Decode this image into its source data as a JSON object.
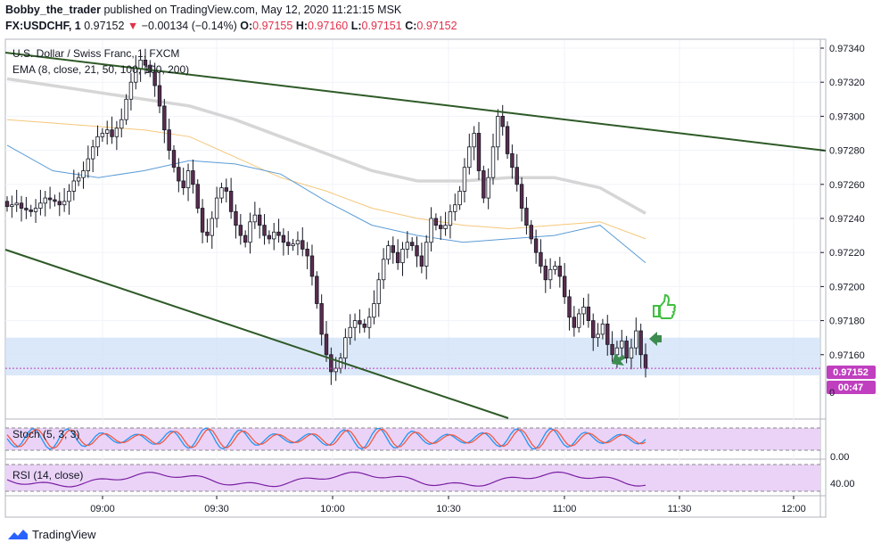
{
  "header": {
    "author": "Bobby_the_trader",
    "published_text": "published on TradingView.com, May 12, 2020 11:21:15 MSK",
    "symbol": "FX:USDCHF, 1",
    "last": "0.97152",
    "change_arrow": "▼",
    "change": "−0.00134 (−0.14%)",
    "o_label": "O:",
    "o_value": "0.97155",
    "h_label": "H:",
    "h_value": "0.97160",
    "l_label": "L:",
    "l_value": "0.97151",
    "c_label": "C:",
    "c_value": "0.97152"
  },
  "legend": {
    "instrument": "U.S. Dollar / Swiss Franc, 1, FXCM",
    "ema": "EMA (8, close, 21, 50, 100, 100, 200)",
    "stoch": "Stoch (5, 3, 3)",
    "rsi": "RSI (14, close)"
  },
  "price_scale": {
    "ticks": [
      "0.97340",
      "0.97320",
      "0.97300",
      "0.97280",
      "0.97260",
      "0.97240",
      "0.97220",
      "0.97200",
      "0.97180",
      "0.97160"
    ],
    "last_price_label": "0.97152",
    "countdown": "00:47",
    "stoch_tick": "0.00",
    "rsi_tick": "40.00"
  },
  "time_scale": {
    "ticks": [
      "09:00",
      "09:30",
      "10:00",
      "10:30",
      "11:00",
      "11:30",
      "12:00"
    ]
  },
  "footer": {
    "brand": "TradingView"
  },
  "colors": {
    "bull": "#ffffff",
    "bear": "#5b2c4f",
    "outline": "#131722",
    "trendline": "#2e5a27",
    "ema_orange": "#f5c77a",
    "ema_blue": "#5b9bd5",
    "ema_grey": "#d6d6d6",
    "zone": "#cfe0f7",
    "last_price": "#c03fbf",
    "stoch_k": "#2196f3",
    "stoch_d": "#f05a44",
    "stoch_bg": "#ead3f7",
    "rsi_line": "#7b1fa2",
    "rsi_bg": "#ead3f7",
    "arrow": "#3c8c50",
    "thumb": "#3fbf3f"
  },
  "chart_data": {
    "type": "candlestick",
    "x_ticks": [
      "09:00",
      "09:30",
      "10:00",
      "10:30",
      "11:00",
      "11:30",
      "12:00"
    ],
    "y_ticks": [
      0.9734,
      0.9732,
      0.973,
      0.9728,
      0.9726,
      0.9724,
      0.9722,
      0.972,
      0.9718,
      0.9716
    ],
    "ylim": [
      0.97132,
      0.97352
    ],
    "last_price": 0.97152,
    "close_path": [
      0.97247,
      0.97248,
      0.97249,
      0.97246,
      0.97245,
      0.97244,
      0.97246,
      0.97249,
      0.97252,
      0.97251,
      0.9725,
      0.97248,
      0.9725,
      0.97256,
      0.97262,
      0.97264,
      0.97268,
      0.97275,
      0.97282,
      0.97288,
      0.9729,
      0.97292,
      0.97288,
      0.97293,
      0.97298,
      0.9731,
      0.9732,
      0.97328,
      0.97333,
      0.9733,
      0.97326,
      0.97318,
      0.97306,
      0.97292,
      0.9728,
      0.9727,
      0.97262,
      0.97258,
      0.97268,
      0.9726,
      0.97246,
      0.97232,
      0.9723,
      0.9724,
      0.97252,
      0.97258,
      0.97256,
      0.97244,
      0.97236,
      0.9723,
      0.97226,
      0.97238,
      0.97242,
      0.97236,
      0.9723,
      0.97228,
      0.97232,
      0.9723,
      0.97226,
      0.97224,
      0.97225,
      0.97227,
      0.97222,
      0.97218,
      0.97206,
      0.9719,
      0.97172,
      0.9716,
      0.9715,
      0.97152,
      0.97158,
      0.9717,
      0.97176,
      0.9718,
      0.97178,
      0.97176,
      0.97182,
      0.9719,
      0.97204,
      0.97216,
      0.97224,
      0.9722,
      0.97214,
      0.97222,
      0.97226,
      0.97224,
      0.97218,
      0.97212,
      0.97226,
      0.9724,
      0.97236,
      0.97234,
      0.97236,
      0.97244,
      0.97248,
      0.97256,
      0.9727,
      0.97282,
      0.9729,
      0.97268,
      0.97252,
      0.97264,
      0.97282,
      0.973,
      0.97294,
      0.97278,
      0.9727,
      0.9726,
      0.97246,
      0.97236,
      0.97228,
      0.9722,
      0.97212,
      0.97204,
      0.9721,
      0.97212,
      0.97206,
      0.97194,
      0.97182,
      0.97176,
      0.97184,
      0.97188,
      0.9718,
      0.9717,
      0.97172,
      0.97178,
      0.97166,
      0.9716,
      0.97164,
      0.97168,
      0.97158,
      0.97164,
      0.97174,
      0.9716,
      0.97152
    ],
    "ema_orange": [
      0.97298,
      0.97296,
      0.97294,
      0.97292,
      0.97288,
      0.97276,
      0.97264,
      0.97256,
      0.97246,
      0.9724,
      0.97236,
      0.97234,
      0.97236,
      0.97238,
      0.97228
    ],
    "ema_blue": [
      0.97283,
      0.97268,
      0.97264,
      0.97268,
      0.97274,
      0.97272,
      0.97266,
      0.9725,
      0.97236,
      0.9723,
      0.97226,
      0.97228,
      0.9723,
      0.97236,
      0.97214
    ],
    "ema_grey": [
      0.97322,
      0.97318,
      0.97314,
      0.9731,
      0.97306,
      0.97298,
      0.97288,
      0.97278,
      0.97268,
      0.97262,
      0.97262,
      0.97264,
      0.97264,
      0.97258,
      0.97243
    ]
  }
}
